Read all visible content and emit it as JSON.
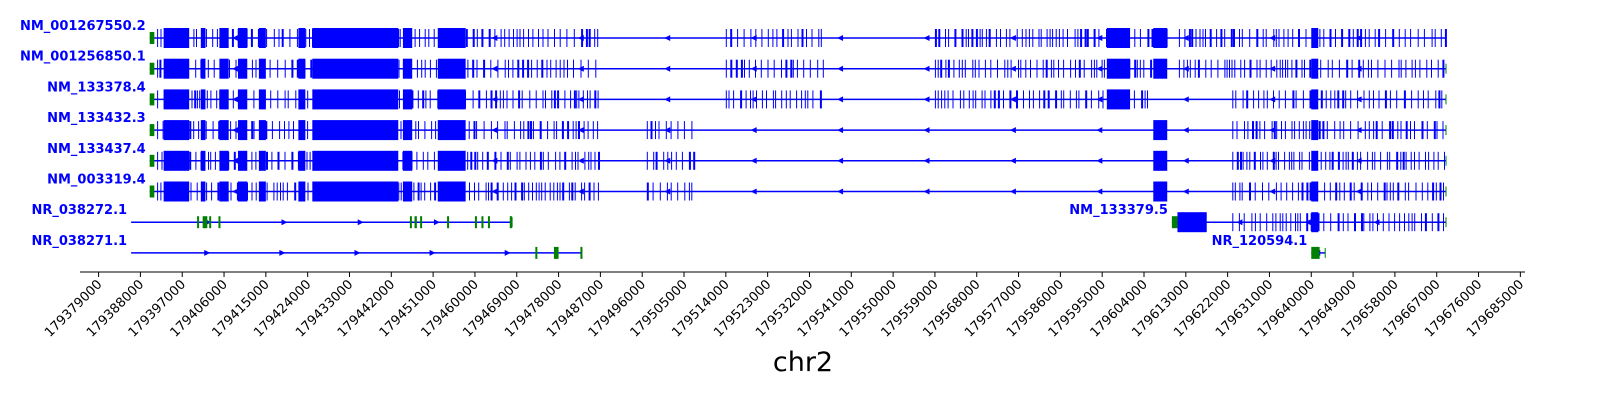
{
  "chart_data": {
    "type": "gene-track",
    "xlabel": "chr2",
    "xlim": [
      179375000,
      179686000
    ],
    "xticks": [
      179379000,
      179388000,
      179397000,
      179406000,
      179415000,
      179424000,
      179433000,
      179442000,
      179451000,
      179460000,
      179469000,
      179478000,
      179487000,
      179496000,
      179505000,
      179514000,
      179523000,
      179532000,
      179541000,
      179550000,
      179559000,
      179568000,
      179577000,
      179586000,
      179595000,
      179604000,
      179613000,
      179622000,
      179631000,
      179640000,
      179649000,
      179658000,
      179667000,
      179676000,
      179685000
    ],
    "colors": {
      "transcript": "#0000ff",
      "utr": "#008000",
      "axis": "#000000"
    },
    "transcripts": [
      {
        "name": "NM_001267550.2",
        "row": 0,
        "strand": "-",
        "start": 179390000,
        "end": 179669000,
        "label_position": "left",
        "utr": [
          [
            179390000,
            179391000
          ]
        ],
        "dense": [
          [
            179391600,
            179486500
          ],
          [
            179514000,
            179535000
          ],
          [
            179559000,
            179609000
          ],
          [
            179611500,
            179669000
          ]
        ],
        "blocks": [
          [
            179393000,
            179398500
          ],
          [
            179401000,
            179402000
          ],
          [
            179405000,
            179407000
          ],
          [
            179409000,
            179411000
          ],
          [
            179413500,
            179415000
          ],
          [
            179422000,
            179423500
          ],
          [
            179425000,
            179443500
          ],
          [
            179444500,
            179446500
          ],
          [
            179452000,
            179458000
          ],
          [
            179596000,
            179601000
          ],
          [
            179606000,
            179609000
          ],
          [
            179640000,
            179641500
          ]
        ]
      },
      {
        "name": "NM_001256850.1",
        "row": 1,
        "strand": "-",
        "start": 179390000,
        "end": 179669000,
        "label_position": "left",
        "utr": [
          [
            179390000,
            179391000
          ]
        ],
        "dense": [
          [
            179391600,
            179486500
          ],
          [
            179514000,
            179535000
          ],
          [
            179559000,
            179609000
          ],
          [
            179611500,
            179669000
          ]
        ],
        "blocks": [
          [
            179393000,
            179398500
          ],
          [
            179401000,
            179402000
          ],
          [
            179405000,
            179407000
          ],
          [
            179409000,
            179411000
          ],
          [
            179413500,
            179415000
          ],
          [
            179422000,
            179423500
          ],
          [
            179425000,
            179443500
          ],
          [
            179444500,
            179446500
          ],
          [
            179452000,
            179458000
          ],
          [
            179596000,
            179601000
          ],
          [
            179606000,
            179609000
          ],
          [
            179640000,
            179641500
          ]
        ]
      },
      {
        "name": "NM_133378.4",
        "row": 2,
        "strand": "-",
        "start": 179390000,
        "end": 179669000,
        "label_position": "left",
        "utr": [
          [
            179390000,
            179391000
          ]
        ],
        "dense": [
          [
            179391600,
            179486500
          ],
          [
            179514000,
            179535000
          ],
          [
            179559000,
            179605000
          ],
          [
            179623000,
            179669000
          ]
        ],
        "blocks": [
          [
            179393000,
            179398500
          ],
          [
            179401000,
            179402000
          ],
          [
            179405000,
            179407000
          ],
          [
            179409000,
            179411000
          ],
          [
            179413500,
            179415000
          ],
          [
            179422000,
            179423500
          ],
          [
            179425000,
            179443500
          ],
          [
            179444500,
            179446500
          ],
          [
            179452000,
            179458000
          ],
          [
            179596000,
            179601000
          ],
          [
            179640000,
            179641500
          ]
        ]
      },
      {
        "name": "NM_133432.3",
        "row": 3,
        "strand": "-",
        "start": 179390000,
        "end": 179669000,
        "label_position": "left",
        "utr": [
          [
            179390000,
            179391000
          ]
        ],
        "dense": [
          [
            179391600,
            179486500
          ],
          [
            179497000,
            179507000
          ],
          [
            179623000,
            179669000
          ]
        ],
        "blocks": [
          [
            179393000,
            179398500
          ],
          [
            179401000,
            179402000
          ],
          [
            179405000,
            179407000
          ],
          [
            179409000,
            179411000
          ],
          [
            179413500,
            179415000
          ],
          [
            179422000,
            179423500
          ],
          [
            179425000,
            179443500
          ],
          [
            179444500,
            179446500
          ],
          [
            179452000,
            179458000
          ],
          [
            179606000,
            179609000
          ],
          [
            179640000,
            179641500
          ]
        ]
      },
      {
        "name": "NM_133437.4",
        "row": 4,
        "strand": "-",
        "start": 179390000,
        "end": 179669000,
        "label_position": "left",
        "utr": [
          [
            179390000,
            179391000
          ]
        ],
        "dense": [
          [
            179391600,
            179486500
          ],
          [
            179497000,
            179507000
          ],
          [
            179623000,
            179669000
          ]
        ],
        "blocks": [
          [
            179393000,
            179398500
          ],
          [
            179401000,
            179402000
          ],
          [
            179405000,
            179407000
          ],
          [
            179409000,
            179411000
          ],
          [
            179413500,
            179415000
          ],
          [
            179422000,
            179423500
          ],
          [
            179425000,
            179443500
          ],
          [
            179444500,
            179446500
          ],
          [
            179452000,
            179458000
          ],
          [
            179606000,
            179609000
          ],
          [
            179640000,
            179641500
          ]
        ]
      },
      {
        "name": "NM_003319.4",
        "row": 5,
        "strand": "-",
        "start": 179390000,
        "end": 179669000,
        "label_position": "left",
        "utr": [
          [
            179390000,
            179391000
          ]
        ],
        "dense": [
          [
            179391600,
            179486500
          ],
          [
            179497000,
            179507000
          ],
          [
            179623000,
            179669000
          ]
        ],
        "blocks": [
          [
            179393000,
            179398500
          ],
          [
            179401000,
            179402000
          ],
          [
            179405000,
            179407000
          ],
          [
            179409000,
            179411000
          ],
          [
            179413500,
            179415000
          ],
          [
            179422000,
            179423500
          ],
          [
            179425000,
            179443500
          ],
          [
            179444500,
            179446500
          ],
          [
            179452000,
            179458000
          ],
          [
            179606000,
            179609000
          ],
          [
            179640000,
            179641500
          ]
        ]
      },
      {
        "name": "NR_038272.1",
        "row": 6,
        "strand": "+",
        "start": 179386000,
        "end": 179468000,
        "label_position": "left",
        "utr": [
          [
            179400200,
            179400600
          ],
          [
            179401400,
            179402400
          ],
          [
            179402800,
            179403100
          ],
          [
            179404800,
            179405100
          ],
          [
            179446000,
            179446400
          ],
          [
            179447000,
            179447500
          ],
          [
            179448200,
            179448500
          ],
          [
            179454000,
            179454300
          ],
          [
            179460000,
            179460400
          ],
          [
            179461400,
            179461800
          ],
          [
            179462800,
            179463200
          ],
          [
            179467500,
            179468000
          ]
        ],
        "dense": [],
        "blocks": []
      },
      {
        "name": "NM_133379.5",
        "row": 6,
        "strand": "-",
        "start": 179610000,
        "end": 179669000,
        "label_position": "left",
        "utr": [
          [
            179610000,
            179611200
          ]
        ],
        "dense": [
          [
            179623000,
            179669000
          ]
        ],
        "blocks": [
          [
            179611200,
            179617500
          ],
          [
            179640000,
            179641500
          ]
        ]
      },
      {
        "name": "NR_038271.1",
        "row": 7,
        "strand": "+",
        "start": 179386000,
        "end": 179483000,
        "label_position": "left",
        "utr": [
          [
            179473000,
            179473300
          ],
          [
            179477000,
            179478000
          ],
          [
            179482700,
            179483000
          ]
        ],
        "dense": [],
        "blocks": []
      },
      {
        "name": "NR_120594.1",
        "row": 7,
        "strand": "-",
        "start": 179640000,
        "end": 179643000,
        "label_position": "left",
        "utr": [
          [
            179640000,
            179641800
          ]
        ],
        "dense": [],
        "blocks": []
      }
    ]
  }
}
